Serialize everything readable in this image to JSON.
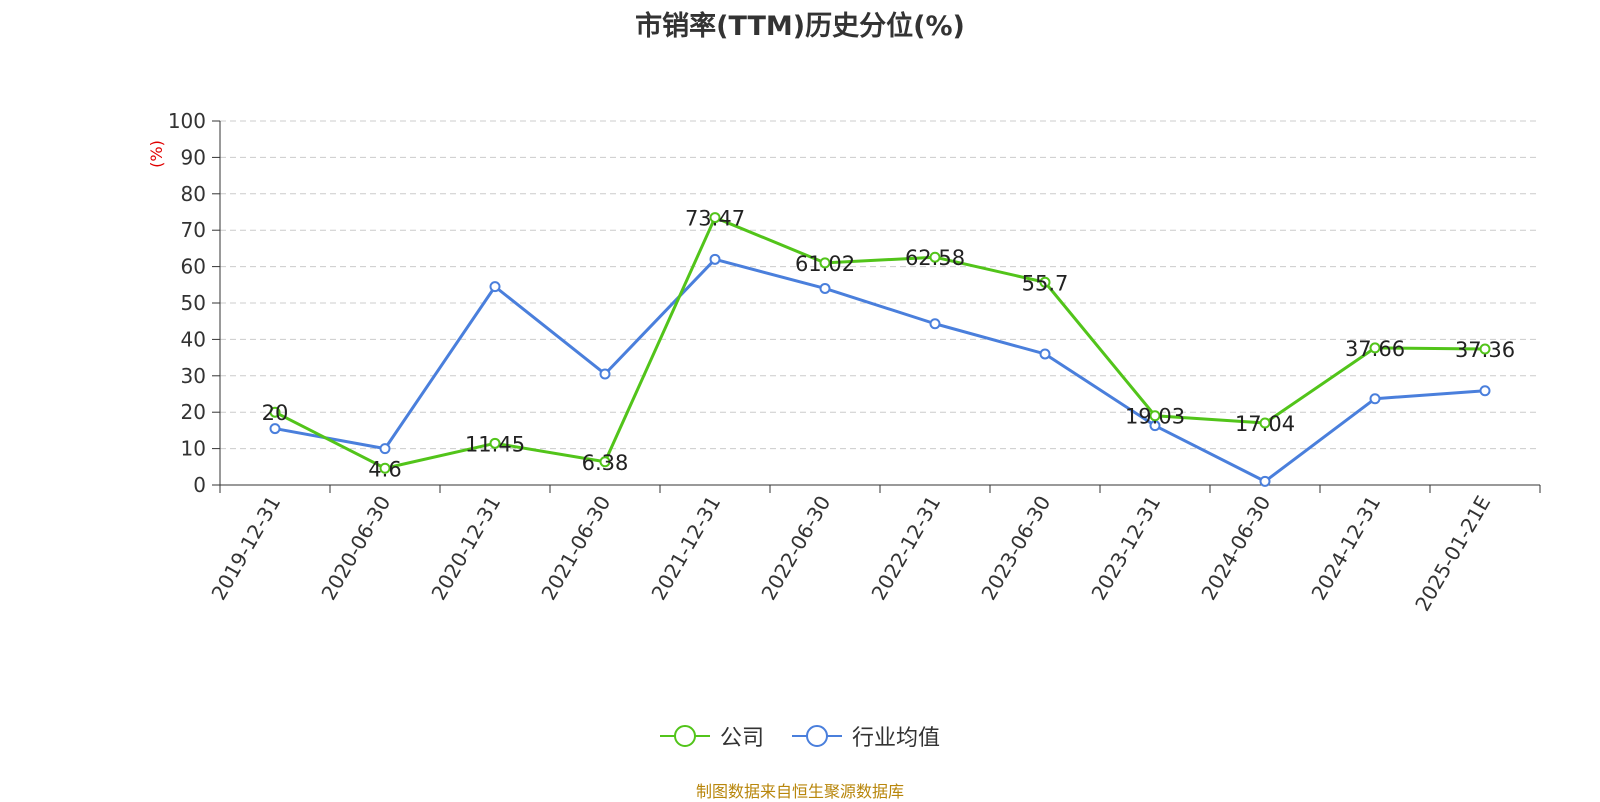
{
  "chart_data": {
    "type": "line",
    "title": "市销率(TTM)历史分位(%)",
    "ylabel": "(%)",
    "categories": [
      "2019-12-31",
      "2020-06-30",
      "2020-12-31",
      "2021-06-30",
      "2021-12-31",
      "2022-06-30",
      "2022-12-31",
      "2023-06-30",
      "2023-12-31",
      "2024-06-30",
      "2024-12-31",
      "2025-01-21E"
    ],
    "yticks": [
      "0",
      "10",
      "20",
      "30",
      "40",
      "50",
      "60",
      "70",
      "80",
      "90",
      "100"
    ],
    "ylim": [
      0,
      100
    ],
    "grid": true,
    "legend_position": "bottom-center",
    "series": [
      {
        "name": "公司",
        "color": "#52c41a",
        "show_labels": true,
        "values": [
          20,
          4.6,
          11.45,
          6.38,
          73.47,
          61.02,
          62.58,
          55.7,
          19.03,
          17.04,
          37.66,
          37.36
        ],
        "labels": [
          "20",
          "4.6",
          "11.45",
          "6.38",
          "73.47",
          "61.02",
          "62.58",
          "55.7",
          "19.03",
          "17.04",
          "37.66",
          "37.36"
        ]
      },
      {
        "name": "行业均值",
        "color": "#4a7fdc",
        "show_labels": false,
        "values": [
          15.5,
          10,
          54.5,
          30.5,
          62,
          54,
          44.3,
          36,
          16.3,
          1,
          23.7,
          25.9
        ]
      }
    ]
  },
  "source_note": "制图数据来自恒生聚源数据库"
}
